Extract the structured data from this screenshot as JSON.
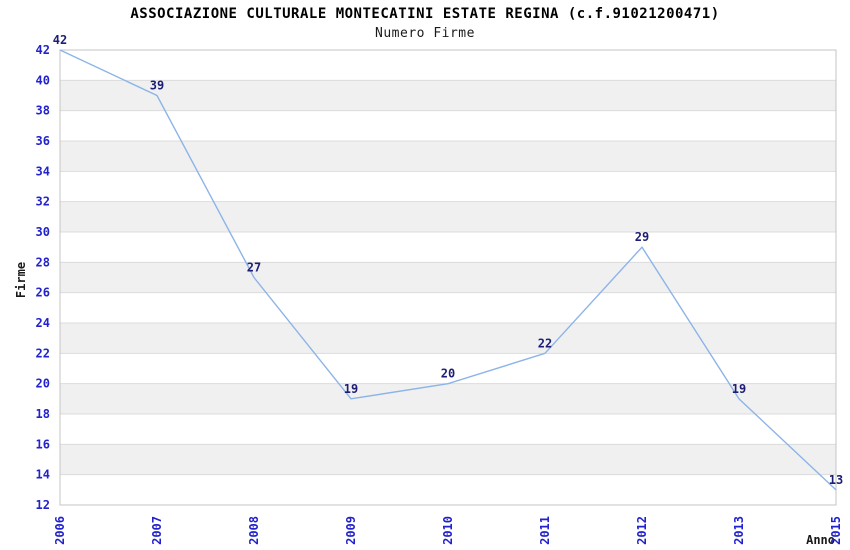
{
  "header": {
    "title": "ASSOCIAZIONE CULTURALE MONTECATINI ESTATE REGINA (c.f.91021200471)",
    "subtitle": "Numero Firme"
  },
  "chart_data": {
    "type": "line",
    "title": "ASSOCIAZIONE CULTURALE MONTECATINI ESTATE REGINA (c.f.91021200471)",
    "subtitle": "Numero Firme",
    "xlabel": "Anno",
    "ylabel": "Firme",
    "categories": [
      "2006",
      "2007",
      "2008",
      "2009",
      "2010",
      "2011",
      "2012",
      "2013",
      "2015"
    ],
    "series": [
      {
        "name": "Numero Firme",
        "values": [
          42,
          39,
          27,
          19,
          20,
          22,
          29,
          19,
          13
        ]
      }
    ],
    "ylim": [
      12,
      42
    ],
    "ytick_step": 2,
    "grid": true,
    "legend": "none",
    "band_fill": "alternating horizontal stripes every 2 units",
    "style": {
      "line_color": "#8cb4e8",
      "tick_label_color": "#2222cc",
      "data_label_color": "#1d1d75",
      "band_color": "#f0f0f0",
      "gridline_color": "#dcdcdc",
      "border_color": "#c4c4c4",
      "title_color": "#000000",
      "axis_title_color": "#1a1a1a",
      "background_color": "#ffffff"
    }
  }
}
